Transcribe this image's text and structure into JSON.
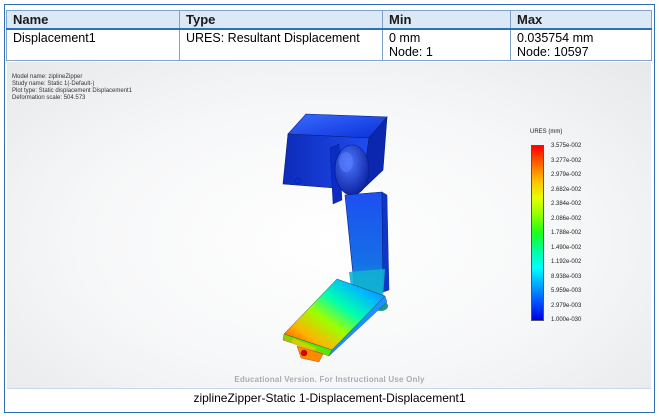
{
  "table": {
    "headers": [
      "Name",
      "Type",
      "Min",
      "Max"
    ],
    "row": {
      "name": "Displacement1",
      "type": "URES: Resultant Displacement",
      "min_value": "0 mm",
      "min_node": "Node: 1",
      "max_value": "0.035754 mm",
      "max_node": "Node: 10597"
    }
  },
  "model_info": {
    "model_name": "Model name: ziplineZipper",
    "study_name": "Study name: Static 1(-Default-)",
    "plot_type": "Plot type: Static displacement Displacement1",
    "deformation_scale": "Deformation scale: 504.573"
  },
  "legend": {
    "title": "URES (mm)",
    "labels": [
      "3.575e-002",
      "3.277e-002",
      "2.979e-002",
      "2.682e-002",
      "2.384e-002",
      "2.086e-002",
      "1.788e-002",
      "1.490e-002",
      "1.192e-002",
      "8.938e-003",
      "5.959e-003",
      "2.979e-003",
      "1.000e-030"
    ]
  },
  "watermark": "Educational Version. For Instructional Use Only",
  "caption": "ziplineZipper-Static 1-Displacement-Displacement1",
  "colors": {
    "frame_border": "#2f6fb5",
    "header_bg": "#dbe8f6",
    "model_blue": "#0a3ee0"
  }
}
